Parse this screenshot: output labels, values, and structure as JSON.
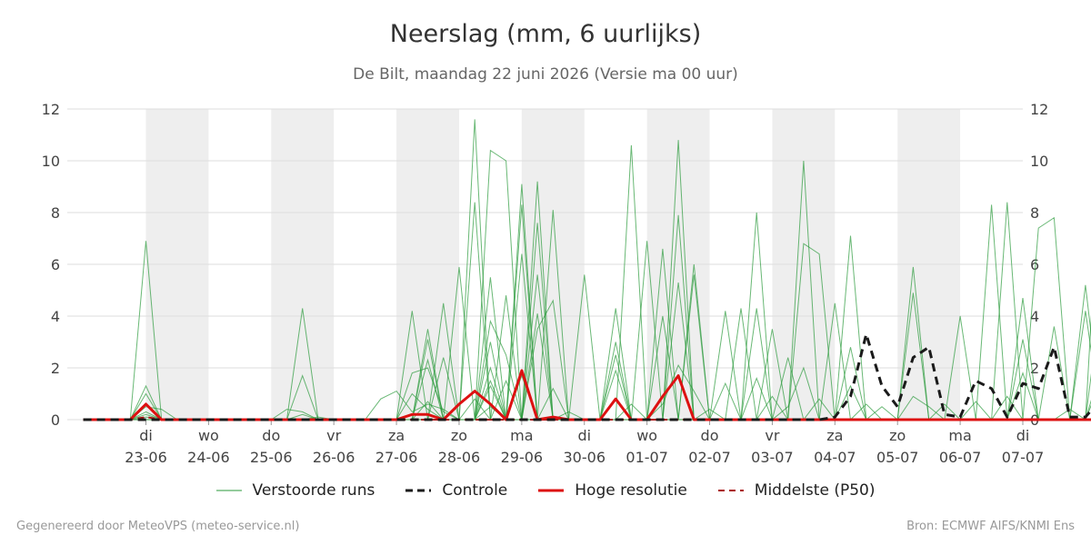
{
  "title": "Neerslag (mm, 6 uurlijks)",
  "subtitle": "De Bilt, maandag 22 juni 2026 (Versie ma 00 uur)",
  "footer": {
    "left": "Gegenereerd door MeteoVPS (meteo-service.nl)",
    "right": "Bron: ECMWF AIFS/KNMI Ens"
  },
  "legend": {
    "perturbed": "Verstoorde runs",
    "control": "Controle",
    "hires": "Hoge resolutie",
    "median": "Middelste (P50)"
  },
  "colors": {
    "perturbed": "#2a9a3a",
    "control": "#1a1a1a",
    "hires": "#dd1111",
    "median": "#aa1111",
    "weekend_band": "#eeeeee",
    "grid": "#dddddd"
  },
  "chart_data": {
    "type": "line",
    "title": "Neerslag (mm, 6 uurlijks)",
    "ylim": [
      0,
      12
    ],
    "yticks": [
      0,
      2,
      4,
      6,
      8,
      10,
      12
    ],
    "y_axis_both_sides": true,
    "grid": true,
    "legend_position": "bottom",
    "x_day_labels": [
      {
        "day": "di",
        "date": "23-06"
      },
      {
        "day": "wo",
        "date": "24-06"
      },
      {
        "day": "do",
        "date": "25-06"
      },
      {
        "day": "vr",
        "date": "26-06"
      },
      {
        "day": "za",
        "date": "27-06"
      },
      {
        "day": "zo",
        "date": "28-06"
      },
      {
        "day": "ma",
        "date": "29-06"
      },
      {
        "day": "di",
        "date": "30-06"
      },
      {
        "day": "wo",
        "date": "01-07"
      },
      {
        "day": "do",
        "date": "02-07"
      },
      {
        "day": "vr",
        "date": "03-07"
      },
      {
        "day": "za",
        "date": "04-07"
      },
      {
        "day": "zo",
        "date": "05-07"
      },
      {
        "day": "ma",
        "date": "06-07"
      },
      {
        "day": "di",
        "date": "07-07"
      }
    ],
    "x_start_step": 0,
    "step_hours": 6,
    "shaded_day_pairs": [
      [
        0,
        1
      ],
      [
        2,
        3
      ],
      [
        4,
        5
      ],
      [
        6,
        7
      ],
      [
        8,
        9
      ],
      [
        10,
        11
      ],
      [
        12,
        13
      ]
    ],
    "series": [
      {
        "name": "Controle",
        "style": "dashed",
        "values": [
          0,
          0,
          0,
          0,
          0,
          0,
          0,
          0,
          0,
          0,
          0,
          0,
          0,
          0,
          0,
          0,
          0,
          0,
          0,
          0,
          0,
          0,
          0,
          0,
          0,
          0,
          0,
          0,
          0,
          0,
          0,
          0,
          0,
          0,
          0,
          0,
          0,
          0,
          0,
          0,
          0,
          0,
          0,
          0,
          0,
          0,
          0,
          0,
          0.1,
          0.9,
          3.3,
          1.3,
          0.5,
          2.4,
          2.8,
          0.2,
          0.1,
          1.5,
          1.2,
          0.1,
          1.4,
          1.2,
          2.8,
          0.1,
          0.1,
          0.8,
          1.5,
          0.4
        ]
      },
      {
        "name": "Hoge resolutie",
        "style": "solid",
        "values": [
          0,
          0,
          0,
          0,
          0.6,
          0,
          0,
          0,
          0,
          0,
          0,
          0,
          0,
          0,
          0,
          0,
          0,
          0,
          0,
          0,
          0,
          0.2,
          0.2,
          0,
          0.6,
          1.1,
          0.6,
          0,
          1.9,
          0,
          0.1,
          0,
          0,
          0,
          0.8,
          0,
          0,
          0.9,
          1.7,
          0,
          0,
          0,
          0,
          0,
          0,
          0,
          0,
          0,
          0,
          0,
          0,
          0,
          0,
          0,
          0,
          0,
          0,
          0,
          0,
          0,
          0,
          0,
          0,
          0,
          0,
          0,
          0,
          0
        ]
      },
      {
        "name": "Middelste (P50)",
        "style": "dashed",
        "values": [
          0,
          0,
          0,
          0,
          0.1,
          0,
          0,
          0,
          0,
          0,
          0,
          0,
          0,
          0,
          0,
          0,
          0,
          0,
          0,
          0,
          0,
          0,
          0,
          0,
          0,
          0,
          0,
          0,
          0,
          0,
          0,
          0,
          0,
          0,
          0,
          0,
          0,
          0,
          0,
          0,
          0,
          0,
          0,
          0,
          0,
          0,
          0,
          0,
          0,
          0,
          0,
          0,
          0,
          0,
          0,
          0,
          0,
          0,
          0,
          0,
          0,
          0,
          0,
          0,
          0,
          0,
          0,
          0
        ]
      }
    ],
    "perturbed_runs": [
      [
        0,
        0,
        0,
        0,
        6.9,
        0,
        0,
        0,
        0,
        0,
        0,
        0,
        0,
        0,
        0,
        0,
        0,
        0,
        0,
        0,
        0,
        4.2,
        0,
        0,
        0,
        11.6,
        0,
        0,
        0,
        0,
        0,
        0,
        0,
        0,
        0,
        0,
        0,
        0,
        0,
        0,
        0,
        0,
        0,
        0,
        0,
        0,
        0,
        0,
        0,
        0,
        0,
        0,
        0,
        0,
        0,
        0,
        0,
        0,
        0,
        0,
        0,
        0,
        0,
        0,
        0,
        0,
        0,
        0
      ],
      [
        0,
        0,
        0,
        0,
        1.3,
        0,
        0,
        0,
        0,
        0,
        0,
        0,
        0,
        0,
        0,
        0.1,
        0,
        0,
        0,
        0,
        0,
        1.8,
        2,
        0.3,
        0,
        0,
        10.4,
        10,
        0,
        0,
        0,
        0,
        0,
        0,
        0,
        0,
        0,
        0,
        0,
        0,
        0,
        0,
        0,
        0,
        0,
        0,
        0,
        0,
        0,
        0,
        0,
        0,
        0,
        0,
        0,
        0,
        0,
        0,
        0,
        0,
        0,
        0,
        0,
        0,
        0,
        0,
        0,
        0
      ],
      [
        0,
        0,
        0,
        0,
        1,
        0,
        0,
        0,
        0,
        0,
        0,
        0,
        0,
        0,
        4.3,
        0,
        0,
        0,
        0,
        0,
        0,
        0,
        0,
        0,
        0,
        0,
        0,
        0,
        9.1,
        0,
        0,
        0,
        0,
        0,
        0,
        0,
        0,
        0,
        0,
        0,
        0,
        0,
        0,
        0,
        0,
        0,
        0,
        0,
        0,
        0,
        0,
        0,
        0,
        0,
        0,
        0,
        0,
        0,
        0,
        0,
        0,
        0,
        0,
        0,
        0,
        0
      ],
      [
        0,
        0,
        0,
        0,
        0.5,
        0.4,
        0,
        0,
        0,
        0,
        0,
        0,
        0,
        0,
        0,
        0,
        0,
        0,
        0,
        0,
        0,
        0,
        0,
        0,
        0,
        0,
        0,
        0,
        0,
        9.2,
        0,
        0,
        0,
        0,
        0,
        10.6,
        0,
        0,
        0,
        0,
        0,
        0,
        0,
        0,
        0,
        0,
        0,
        0,
        0,
        0,
        0,
        0,
        0,
        0,
        0,
        0,
        0,
        0,
        0,
        0,
        0,
        0,
        0,
        0,
        0,
        0,
        0,
        0
      ],
      [
        0,
        0,
        0,
        0,
        0.3,
        0,
        0,
        0,
        0,
        0,
        0,
        0,
        0,
        0,
        1.7,
        0,
        0,
        0,
        0,
        0,
        0,
        0,
        0,
        0,
        0,
        8.4,
        0,
        0,
        0,
        0,
        8.1,
        0,
        0,
        0,
        0,
        0,
        0,
        0,
        10.8,
        0,
        0,
        0,
        0,
        0,
        0,
        0,
        0,
        0,
        0,
        0,
        0,
        0,
        0,
        0,
        0,
        0,
        0,
        0,
        0,
        0,
        0,
        0,
        0,
        0,
        0,
        0,
        0,
        0
      ],
      [
        0,
        0,
        0,
        0,
        0.2,
        0,
        0,
        0,
        0,
        0,
        0,
        0,
        0,
        0,
        0,
        0,
        0,
        0,
        0,
        0,
        0,
        0,
        3.1,
        0,
        5.9,
        0,
        0,
        0,
        0,
        0,
        0,
        0,
        5.6,
        0,
        0,
        0,
        6.9,
        0,
        7.9,
        0,
        0,
        0,
        0,
        0,
        0,
        0,
        10,
        0,
        0,
        0,
        0,
        0,
        0,
        0,
        0,
        0,
        0,
        0,
        0,
        0,
        0,
        0,
        0,
        0,
        0,
        10.6,
        0,
        0
      ],
      [
        0,
        0,
        0,
        0,
        0,
        0,
        0,
        0,
        0,
        0,
        0,
        0,
        0,
        0,
        0,
        0,
        0,
        0,
        0,
        0,
        0,
        0,
        0,
        4.5,
        0,
        0,
        5.5,
        0,
        8.3,
        0,
        0,
        0,
        0,
        0,
        2.5,
        0,
        0,
        6.6,
        0,
        0,
        0,
        0,
        0,
        0,
        0,
        0,
        0,
        0,
        0,
        0,
        0,
        0,
        0,
        0,
        0,
        0,
        0,
        0,
        0,
        8.4,
        0,
        0,
        0,
        0,
        0,
        0,
        7.5,
        9.1
      ],
      [
        0,
        0,
        0,
        0,
        0,
        0,
        0,
        0,
        0,
        0,
        0,
        0,
        0,
        0,
        0,
        0,
        0,
        0,
        0,
        0,
        0,
        0,
        0,
        0,
        0,
        0,
        0,
        0,
        0,
        3.5,
        4.6,
        0,
        0,
        0,
        0,
        0,
        0,
        4,
        0,
        5.6,
        0,
        0,
        0,
        0,
        0,
        0,
        6.8,
        6.4,
        0,
        0,
        0,
        0,
        0,
        0,
        0,
        0,
        0,
        0,
        8.3,
        0,
        0,
        0,
        0,
        0,
        0,
        0,
        0,
        7.7
      ],
      [
        0,
        0,
        0,
        0,
        0,
        0,
        0,
        0,
        0,
        0,
        0,
        0,
        0,
        0,
        0,
        0,
        0,
        0,
        0,
        0,
        0,
        0,
        0,
        0,
        0,
        0,
        3.8,
        2.5,
        0,
        4.1,
        0,
        0,
        0,
        0,
        0,
        0,
        0,
        0,
        0,
        0,
        0,
        0,
        4.3,
        0,
        0,
        0,
        0,
        0,
        0,
        7.1,
        0,
        0,
        0,
        0,
        0,
        0,
        0,
        0,
        0,
        0,
        0,
        7.4,
        7.8,
        0,
        0,
        0,
        0,
        0
      ],
      [
        0,
        0,
        0,
        0,
        0,
        0,
        0,
        0,
        0,
        0,
        0,
        0,
        0,
        0,
        0,
        0,
        0,
        0,
        0,
        0,
        0,
        0,
        3.5,
        0,
        0,
        0,
        3,
        0,
        0,
        7.6,
        0,
        0,
        0,
        0,
        0,
        0,
        0,
        0,
        0,
        0,
        0,
        0,
        0,
        8,
        0,
        0,
        0,
        0,
        0,
        0,
        0,
        0,
        0,
        4.9,
        0,
        0,
        0,
        0,
        0,
        0,
        4.7,
        0,
        0,
        0,
        0,
        0,
        0,
        4.9
      ],
      [
        0,
        0,
        0,
        0,
        0,
        0,
        0,
        0,
        0,
        0,
        0,
        0,
        0,
        0,
        0,
        0,
        0,
        0,
        0,
        0,
        0,
        0,
        2.3,
        0,
        0,
        0,
        0,
        0,
        6.4,
        0,
        0,
        0,
        0,
        0,
        4.3,
        0,
        0,
        0,
        5.3,
        0,
        0,
        4.2,
        0,
        0,
        0,
        0,
        0,
        0,
        4.5,
        0,
        0,
        0,
        0,
        5.9,
        0,
        0,
        4,
        0,
        0,
        0,
        0,
        0,
        0,
        0,
        5.2,
        0,
        0,
        0
      ],
      [
        0,
        0,
        0,
        0,
        0,
        0,
        0,
        0,
        0,
        0,
        0,
        0,
        0,
        0,
        0,
        0,
        0,
        0,
        0,
        0,
        0,
        0,
        0,
        2.4,
        0,
        0,
        0,
        4.8,
        0,
        0,
        0,
        0,
        0,
        0,
        0,
        0,
        0,
        0,
        0,
        6,
        0,
        0,
        0,
        4.3,
        0,
        0,
        0,
        0,
        0,
        0,
        0,
        0,
        0,
        0,
        0,
        0,
        0,
        0,
        0,
        0,
        0,
        0,
        3.6,
        0,
        0,
        4.7,
        0,
        0
      ],
      [
        0,
        0,
        0,
        0,
        0,
        0,
        0,
        0,
        0,
        0,
        0,
        0,
        0,
        0,
        0,
        0,
        0,
        0,
        0,
        0,
        0,
        0,
        0,
        0,
        0,
        0,
        2,
        0,
        0,
        5.6,
        0,
        0,
        0,
        0,
        0,
        0,
        0,
        0,
        0,
        0,
        0,
        0,
        0,
        0,
        3.5,
        0,
        0,
        0,
        0,
        0,
        0,
        0,
        0,
        0,
        0,
        0,
        0,
        0,
        0,
        0,
        0,
        0,
        0,
        0,
        4.2,
        0,
        0,
        0
      ],
      [
        0,
        0,
        0,
        0,
        0,
        0,
        0,
        0,
        0,
        0,
        0,
        0,
        0,
        0,
        0,
        0,
        0,
        0,
        0,
        0,
        0,
        0,
        0,
        0,
        0,
        0,
        1.5,
        0,
        0,
        0,
        0,
        0,
        0,
        0,
        3,
        0,
        0,
        0,
        0,
        0,
        0,
        0,
        0,
        0,
        0,
        2.4,
        0,
        0,
        0,
        2.8,
        0,
        0,
        0,
        0,
        0,
        0,
        0,
        0,
        0,
        0,
        3.1,
        0,
        0,
        0,
        0,
        2,
        0,
        0
      ],
      [
        0,
        0,
        0,
        0,
        0,
        0,
        0,
        0,
        0,
        0,
        0,
        0,
        0,
        0.4,
        0.3,
        0,
        0,
        0,
        0,
        0.8,
        1.1,
        0.3,
        0.6,
        0.4,
        0,
        0,
        0.5,
        0,
        1.7,
        0,
        1.2,
        0,
        0,
        0,
        1.9,
        0,
        0,
        0.6,
        2.1,
        1.1,
        0,
        0,
        0,
        1.6,
        0,
        0.5,
        2,
        0,
        0,
        1.3,
        0,
        0,
        0,
        0.9,
        0.5,
        0,
        0,
        0.7,
        0,
        0,
        1.8,
        0,
        0,
        0,
        0,
        1.5,
        0,
        2
      ],
      [
        0,
        0,
        0,
        0,
        0,
        0,
        0,
        0,
        0,
        0,
        0,
        0,
        0,
        0,
        0.2,
        0,
        0,
        0,
        0,
        0,
        0,
        1,
        0.4,
        0,
        0,
        0.8,
        0,
        1.5,
        0,
        0,
        0,
        0.3,
        0,
        0,
        0,
        0.6,
        0,
        0,
        0,
        0,
        0.4,
        0,
        0,
        0,
        0.9,
        0,
        0,
        0.8,
        0,
        0,
        0,
        0.5,
        0,
        0,
        0,
        0.6,
        0,
        0,
        0,
        0.9,
        0,
        0,
        0,
        0.4,
        0,
        0,
        0.7,
        0
      ],
      [
        0,
        0,
        0,
        0,
        0.1,
        0,
        0,
        0,
        0,
        0,
        0,
        0,
        0,
        0,
        0,
        0,
        0,
        0,
        0,
        0,
        0,
        0,
        0.7,
        0,
        0,
        0,
        1.3,
        0,
        0,
        0,
        0,
        0,
        0,
        0,
        0,
        0,
        0,
        0,
        0,
        0,
        0,
        1.4,
        0,
        0,
        0,
        0,
        0,
        0,
        0,
        0,
        0.6,
        0,
        0,
        0,
        0,
        0,
        0,
        0,
        0,
        0,
        0,
        0,
        0,
        0,
        0,
        0,
        0,
        0
      ],
      [
        0,
        0,
        0,
        0,
        0,
        0,
        0,
        0,
        0,
        0,
        0,
        0,
        0,
        0,
        0,
        0,
        0,
        0,
        0,
        0,
        0,
        0,
        0,
        0,
        0,
        0,
        0,
        0,
        0,
        0,
        0,
        0,
        0,
        0,
        0,
        0,
        0,
        0,
        0,
        0,
        0,
        0,
        0,
        0,
        0,
        0,
        0,
        0,
        0,
        0,
        0,
        0,
        0,
        0,
        0,
        0,
        0,
        0,
        0,
        0,
        0,
        0,
        0,
        0,
        0,
        0,
        0,
        0
      ]
    ]
  }
}
